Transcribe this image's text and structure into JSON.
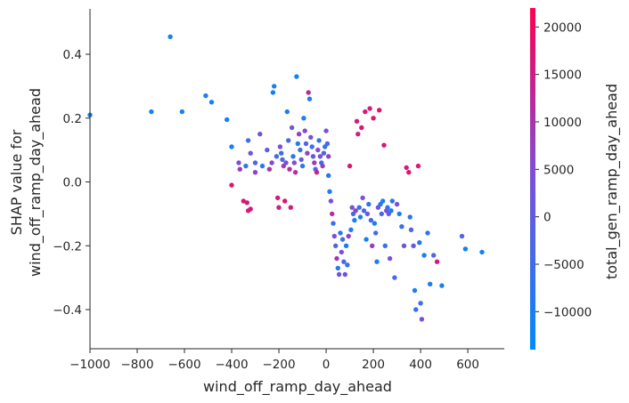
{
  "chart_data": {
    "type": "scatter",
    "title": "",
    "xlabel": "wind_off_ramp_day_ahead",
    "ylabel_lines": [
      "SHAP value for",
      "wind_off_ramp_day_ahead"
    ],
    "xlim": [
      -1000,
      760
    ],
    "ylim": [
      -0.53,
      0.545
    ],
    "x_ticks": [
      -1000,
      -800,
      -600,
      -400,
      -200,
      0,
      200,
      400,
      600
    ],
    "x_tick_labels": [
      "−1000",
      "−800",
      "−600",
      "−400",
      "−200",
      "0",
      "200",
      "400",
      "600"
    ],
    "y_ticks": [
      0.4,
      0.2,
      0.0,
      -0.2,
      -0.4
    ],
    "y_tick_labels": [
      "0.4",
      "0.2",
      "0.0",
      "−0.2",
      "−0.4"
    ],
    "colorbar": {
      "label": "total_gen_ramp_day_ahead",
      "range": [
        -14000,
        22000
      ],
      "ticks": [
        20000,
        15000,
        10000,
        5000,
        0,
        -5000,
        -10000
      ],
      "tick_labels": [
        "20000",
        "15000",
        "10000",
        "5000",
        "0",
        "−5000",
        "−10000"
      ],
      "colormap": [
        "#008afb",
        "#ff0052"
      ]
    },
    "grid": false,
    "points": [
      {
        "x": -1000,
        "y": 0.21,
        "c": -12000
      },
      {
        "x": -660,
        "y": 0.455,
        "c": -11000
      },
      {
        "x": -740,
        "y": 0.22,
        "c": -11000
      },
      {
        "x": -610,
        "y": 0.22,
        "c": -11000
      },
      {
        "x": -510,
        "y": 0.27,
        "c": -10000
      },
      {
        "x": -485,
        "y": 0.25,
        "c": -11000
      },
      {
        "x": -420,
        "y": 0.195,
        "c": -11000
      },
      {
        "x": -400,
        "y": 0.11,
        "c": -11000
      },
      {
        "x": -400,
        "y": -0.01,
        "c": 18000
      },
      {
        "x": -365,
        "y": 0.04,
        "c": 9000
      },
      {
        "x": -370,
        "y": 0.06,
        "c": 4000
      },
      {
        "x": -340,
        "y": 0.05,
        "c": -8000
      },
      {
        "x": -350,
        "y": -0.06,
        "c": 17000
      },
      {
        "x": -335,
        "y": -0.065,
        "c": 16000
      },
      {
        "x": -320,
        "y": -0.085,
        "c": 17000
      },
      {
        "x": -330,
        "y": -0.09,
        "c": 16000
      },
      {
        "x": -330,
        "y": 0.13,
        "c": -6000
      },
      {
        "x": -320,
        "y": 0.09,
        "c": 3000
      },
      {
        "x": -300,
        "y": 0.06,
        "c": -4000
      },
      {
        "x": -300,
        "y": 0.03,
        "c": 6000
      },
      {
        "x": -280,
        "y": 0.15,
        "c": 2000
      },
      {
        "x": -270,
        "y": 0.05,
        "c": -9000
      },
      {
        "x": -250,
        "y": 0.1,
        "c": 0
      },
      {
        "x": -240,
        "y": 0.04,
        "c": 10000
      },
      {
        "x": -230,
        "y": 0.06,
        "c": 6000
      },
      {
        "x": -225,
        "y": 0.28,
        "c": -11000
      },
      {
        "x": -220,
        "y": 0.3,
        "c": -11000
      },
      {
        "x": -210,
        "y": 0.08,
        "c": -4000
      },
      {
        "x": -205,
        "y": -0.05,
        "c": 17000
      },
      {
        "x": -200,
        "y": -0.08,
        "c": 15000
      },
      {
        "x": -195,
        "y": 0.11,
        "c": 4000
      },
      {
        "x": -190,
        "y": 0.09,
        "c": -6000
      },
      {
        "x": -185,
        "y": 0.07,
        "c": -2000
      },
      {
        "x": -180,
        "y": 0.05,
        "c": 8000
      },
      {
        "x": -175,
        "y": -0.06,
        "c": 18000
      },
      {
        "x": -170,
        "y": 0.06,
        "c": 3000
      },
      {
        "x": -165,
        "y": 0.22,
        "c": -10000
      },
      {
        "x": -160,
        "y": 0.13,
        "c": -3000
      },
      {
        "x": -155,
        "y": 0.04,
        "c": 12000
      },
      {
        "x": -150,
        "y": -0.08,
        "c": 16000
      },
      {
        "x": -145,
        "y": 0.17,
        "c": 1000
      },
      {
        "x": -140,
        "y": 0.08,
        "c": -7000
      },
      {
        "x": -135,
        "y": 0.06,
        "c": 5000
      },
      {
        "x": -130,
        "y": 0.03,
        "c": 10000
      },
      {
        "x": -125,
        "y": 0.33,
        "c": -11000
      },
      {
        "x": -120,
        "y": 0.12,
        "c": -9000
      },
      {
        "x": -115,
        "y": 0.15,
        "c": 6000
      },
      {
        "x": -110,
        "y": 0.1,
        "c": -5000
      },
      {
        "x": -105,
        "y": 0.07,
        "c": 2000
      },
      {
        "x": -100,
        "y": 0.05,
        "c": -8000
      },
      {
        "x": -95,
        "y": 0.2,
        "c": -10000
      },
      {
        "x": -90,
        "y": 0.16,
        "c": 4000
      },
      {
        "x": -85,
        "y": 0.12,
        "c": -2000
      },
      {
        "x": -80,
        "y": 0.09,
        "c": 7000
      },
      {
        "x": -75,
        "y": 0.28,
        "c": 12000
      },
      {
        "x": -70,
        "y": 0.26,
        "c": -9000
      },
      {
        "x": -65,
        "y": 0.14,
        "c": 3000
      },
      {
        "x": -60,
        "y": 0.11,
        "c": -6000
      },
      {
        "x": -55,
        "y": 0.08,
        "c": 1000
      },
      {
        "x": -50,
        "y": 0.06,
        "c": 9000
      },
      {
        "x": -45,
        "y": 0.04,
        "c": -3000
      },
      {
        "x": -40,
        "y": 0.03,
        "c": 14000
      },
      {
        "x": -35,
        "y": 0.1,
        "c": 5000
      },
      {
        "x": -30,
        "y": 0.13,
        "c": -7000
      },
      {
        "x": -25,
        "y": 0.08,
        "c": 2000
      },
      {
        "x": -20,
        "y": 0.06,
        "c": -5000
      },
      {
        "x": -15,
        "y": 0.05,
        "c": 8000
      },
      {
        "x": -10,
        "y": 0.09,
        "c": -1000
      },
      {
        "x": -5,
        "y": 0.11,
        "c": -8000
      },
      {
        "x": 0,
        "y": 0.16,
        "c": 3000
      },
      {
        "x": 5,
        "y": 0.12,
        "c": -4000
      },
      {
        "x": 10,
        "y": 0.08,
        "c": 6000
      },
      {
        "x": 10,
        "y": 0.02,
        "c": -9000
      },
      {
        "x": 15,
        "y": -0.03,
        "c": -10000
      },
      {
        "x": 20,
        "y": -0.06,
        "c": 2000
      },
      {
        "x": 25,
        "y": -0.1,
        "c": 11000
      },
      {
        "x": 30,
        "y": -0.13,
        "c": -6000
      },
      {
        "x": 35,
        "y": -0.17,
        "c": 4000
      },
      {
        "x": 40,
        "y": -0.2,
        "c": -2000
      },
      {
        "x": 45,
        "y": -0.24,
        "c": 9000
      },
      {
        "x": 50,
        "y": -0.27,
        "c": -8000
      },
      {
        "x": 55,
        "y": -0.29,
        "c": 1000
      },
      {
        "x": 60,
        "y": -0.16,
        "c": -9000
      },
      {
        "x": 65,
        "y": -0.22,
        "c": 5000
      },
      {
        "x": 70,
        "y": -0.18,
        "c": -5000
      },
      {
        "x": 75,
        "y": -0.25,
        "c": -3000
      },
      {
        "x": 80,
        "y": -0.29,
        "c": 2000
      },
      {
        "x": 85,
        "y": -0.2,
        "c": -10000
      },
      {
        "x": 90,
        "y": -0.26,
        "c": -6000
      },
      {
        "x": 95,
        "y": -0.17,
        "c": 7000
      },
      {
        "x": 100,
        "y": 0.05,
        "c": 17000
      },
      {
        "x": 105,
        "y": -0.15,
        "c": -8000
      },
      {
        "x": 110,
        "y": -0.08,
        "c": 3000
      },
      {
        "x": 115,
        "y": -0.1,
        "c": -4000
      },
      {
        "x": 120,
        "y": -0.12,
        "c": -10000
      },
      {
        "x": 125,
        "y": -0.09,
        "c": 6000
      },
      {
        "x": 130,
        "y": 0.19,
        "c": 16000
      },
      {
        "x": 135,
        "y": 0.15,
        "c": 15000
      },
      {
        "x": 140,
        "y": -0.08,
        "c": -6000
      },
      {
        "x": 145,
        "y": -0.11,
        "c": -9000
      },
      {
        "x": 150,
        "y": 0.17,
        "c": 18000
      },
      {
        "x": 155,
        "y": -0.05,
        "c": 4000
      },
      {
        "x": 160,
        "y": -0.09,
        "c": -3000
      },
      {
        "x": 165,
        "y": 0.22,
        "c": 17000
      },
      {
        "x": 170,
        "y": -0.18,
        "c": -11000
      },
      {
        "x": 175,
        "y": -0.1,
        "c": 1000
      },
      {
        "x": 180,
        "y": -0.07,
        "c": -7000
      },
      {
        "x": 185,
        "y": 0.23,
        "c": 16000
      },
      {
        "x": 190,
        "y": -0.12,
        "c": -4000
      },
      {
        "x": 195,
        "y": -0.2,
        "c": 8000
      },
      {
        "x": 200,
        "y": 0.2,
        "c": 18000
      },
      {
        "x": 205,
        "y": -0.13,
        "c": -10000
      },
      {
        "x": 210,
        "y": -0.16,
        "c": -5000
      },
      {
        "x": 215,
        "y": -0.25,
        "c": -9000
      },
      {
        "x": 220,
        "y": -0.08,
        "c": 2000
      },
      {
        "x": 225,
        "y": 0.225,
        "c": 18000
      },
      {
        "x": 230,
        "y": -0.07,
        "c": -8000
      },
      {
        "x": 235,
        "y": -0.1,
        "c": -3000
      },
      {
        "x": 240,
        "y": -0.06,
        "c": -9000
      },
      {
        "x": 245,
        "y": 0.115,
        "c": 17000
      },
      {
        "x": 250,
        "y": -0.2,
        "c": -6000
      },
      {
        "x": 255,
        "y": -0.09,
        "c": 5000
      },
      {
        "x": 260,
        "y": -0.08,
        "c": -7000
      },
      {
        "x": 265,
        "y": -0.1,
        "c": -1000
      },
      {
        "x": 270,
        "y": -0.24,
        "c": 4000
      },
      {
        "x": 275,
        "y": -0.09,
        "c": -10000
      },
      {
        "x": 280,
        "y": -0.06,
        "c": -8000
      },
      {
        "x": 290,
        "y": -0.3,
        "c": -4000
      },
      {
        "x": 300,
        "y": -0.07,
        "c": 3000
      },
      {
        "x": 310,
        "y": -0.1,
        "c": -9000
      },
      {
        "x": 320,
        "y": -0.14,
        "c": -6000
      },
      {
        "x": 330,
        "y": -0.2,
        "c": 2000
      },
      {
        "x": 340,
        "y": 0.045,
        "c": 16000
      },
      {
        "x": 350,
        "y": 0.03,
        "c": 18000
      },
      {
        "x": 355,
        "y": -0.11,
        "c": -8000
      },
      {
        "x": 360,
        "y": -0.15,
        "c": -3000
      },
      {
        "x": 370,
        "y": -0.2,
        "c": 1000
      },
      {
        "x": 375,
        "y": -0.34,
        "c": -10000
      },
      {
        "x": 380,
        "y": -0.4,
        "c": -6000
      },
      {
        "x": 390,
        "y": 0.05,
        "c": 17000
      },
      {
        "x": 395,
        "y": -0.19,
        "c": -9000
      },
      {
        "x": 400,
        "y": -0.38,
        "c": -5000
      },
      {
        "x": 405,
        "y": -0.43,
        "c": 4000
      },
      {
        "x": 415,
        "y": -0.23,
        "c": -11000
      },
      {
        "x": 430,
        "y": -0.16,
        "c": -7000
      },
      {
        "x": 440,
        "y": -0.32,
        "c": -10000
      },
      {
        "x": 455,
        "y": -0.23,
        "c": -2000
      },
      {
        "x": 470,
        "y": -0.25,
        "c": 16000
      },
      {
        "x": 490,
        "y": -0.325,
        "c": -10000
      },
      {
        "x": 575,
        "y": -0.17,
        "c": -3000
      },
      {
        "x": 590,
        "y": -0.21,
        "c": -11000
      },
      {
        "x": 660,
        "y": -0.22,
        "c": -10000
      }
    ]
  }
}
